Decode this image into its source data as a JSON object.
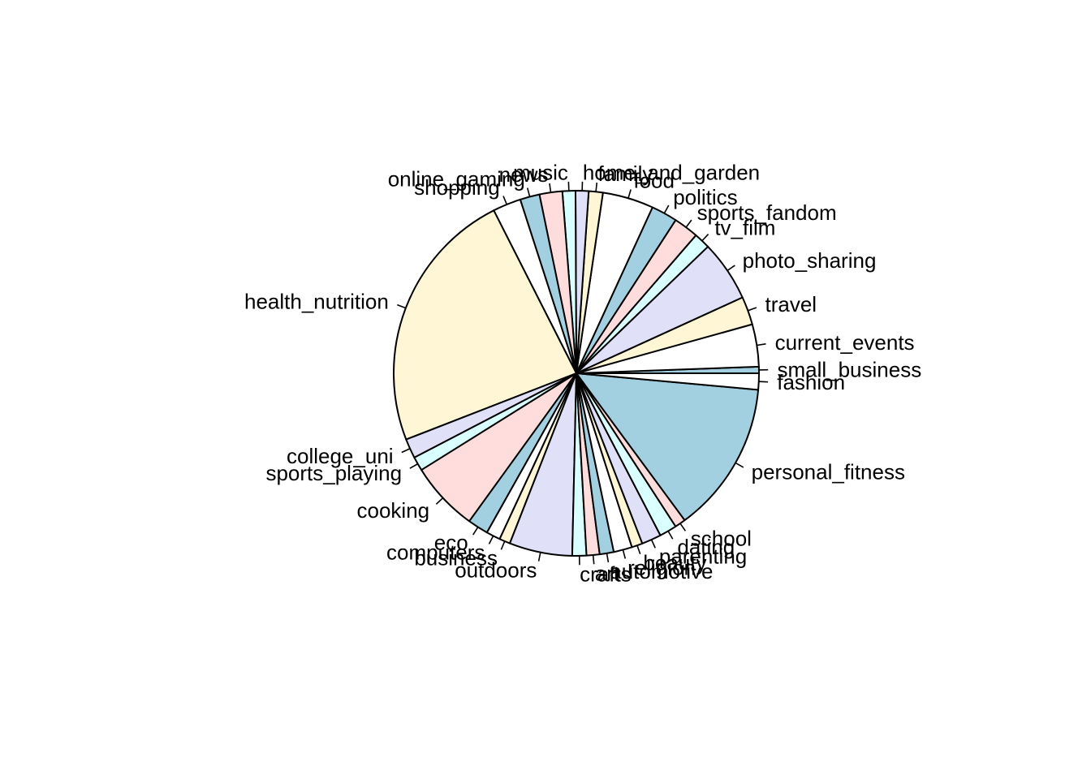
{
  "chart_data": {
    "type": "pie",
    "title": "",
    "clockwise": false,
    "start_angle_deg": 0,
    "palette": [
      "#a3d0e0",
      "#ffffff",
      "#fff6d6",
      "#e0e0f8",
      "#daffff",
      "#ffdddd"
    ],
    "slices": [
      {
        "label": "small_business",
        "value": 0.6
      },
      {
        "label": "current_events",
        "value": 3.9
      },
      {
        "label": "travel",
        "value": 2.6
      },
      {
        "label": "photo_sharing",
        "value": 5.6
      },
      {
        "label": "tv_film",
        "value": 1.5
      },
      {
        "label": "sports_fandom",
        "value": 2.3
      },
      {
        "label": "politics",
        "value": 2.4
      },
      {
        "label": "food",
        "value": 4.7
      },
      {
        "label": "family",
        "value": 1.3
      },
      {
        "label": "home_and_garden",
        "value": 1.2
      },
      {
        "label": "music",
        "value": 1.2
      },
      {
        "label": "news",
        "value": 2.1
      },
      {
        "label": "online_gaming",
        "value": 1.8
      },
      {
        "label": "shopping",
        "value": 2.6
      },
      {
        "label": "health_nutrition",
        "value": 24.4
      },
      {
        "label": "college_uni",
        "value": 1.8
      },
      {
        "label": "sports_playing",
        "value": 1.3
      },
      {
        "label": "cooking",
        "value": 6.4
      },
      {
        "label": "eco",
        "value": 1.9
      },
      {
        "label": "computers",
        "value": 1.3
      },
      {
        "label": "business",
        "value": 1.0
      },
      {
        "label": "outdoors",
        "value": 5.8
      },
      {
        "label": "crafts",
        "value": 1.3
      },
      {
        "label": "art",
        "value": 1.2
      },
      {
        "label": "automotive",
        "value": 1.3
      },
      {
        "label": "religion",
        "value": 1.7
      },
      {
        "label": "beauty",
        "value": 1.0
      },
      {
        "label": "parenting",
        "value": 1.8
      },
      {
        "label": "dating",
        "value": 1.6
      },
      {
        "label": "school",
        "value": 1.0
      },
      {
        "label": "personal_fitness",
        "value": 14.0
      },
      {
        "label": "fashion",
        "value": 1.5
      }
    ]
  }
}
